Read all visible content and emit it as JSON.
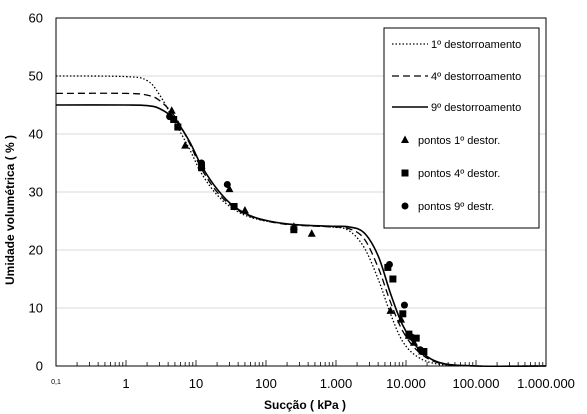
{
  "chart_data": {
    "type": "scatter",
    "xlabel": "Sucção ( kPa )",
    "ylabel": "Umidade volumétrica ( % )",
    "x_scale": "log",
    "xlim": [
      0.1,
      1000000
    ],
    "ylim": [
      0,
      60
    ],
    "x_ticks": [
      0.1,
      1,
      10,
      100,
      1000,
      10000,
      100000,
      1000000
    ],
    "x_tick_labels": [
      "0,1",
      "1",
      "10",
      "100",
      "1.000",
      "10.000",
      "100.000",
      "1.000.000"
    ],
    "y_ticks": [
      0,
      10,
      20,
      30,
      40,
      50,
      60
    ],
    "y_tick_labels": [
      "0",
      "10",
      "20",
      "30",
      "40",
      "50",
      "60"
    ],
    "grid": "horizontal",
    "legend_position": "top-right",
    "curves": [
      {
        "name": "1º destorroamento",
        "style": "dotted",
        "points": [
          [
            0.1,
            50.0
          ],
          [
            1,
            49.9
          ],
          [
            2,
            49.2
          ],
          [
            3,
            46.8
          ],
          [
            5,
            42.0
          ],
          [
            8,
            37.5
          ],
          [
            12,
            33.2
          ],
          [
            20,
            29.5
          ],
          [
            35,
            27.0
          ],
          [
            70,
            25.4
          ],
          [
            200,
            24.5
          ],
          [
            800,
            24.0
          ],
          [
            1500,
            23.4
          ],
          [
            2500,
            20.5
          ],
          [
            4000,
            15.0
          ],
          [
            6000,
            9.0
          ],
          [
            9000,
            4.2
          ],
          [
            15000,
            1.5
          ],
          [
            30000,
            0.3
          ],
          [
            100000,
            0
          ],
          [
            1000000,
            0
          ]
        ]
      },
      {
        "name": "4º destorroamento",
        "style": "dashed",
        "points": [
          [
            0.1,
            47.0
          ],
          [
            1,
            47.0
          ],
          [
            2,
            46.7
          ],
          [
            3,
            45.8
          ],
          [
            5,
            43.0
          ],
          [
            8,
            38.5
          ],
          [
            12,
            34.0
          ],
          [
            20,
            30.0
          ],
          [
            35,
            27.3
          ],
          [
            70,
            25.5
          ],
          [
            200,
            24.4
          ],
          [
            800,
            24.0
          ],
          [
            1500,
            23.7
          ],
          [
            2500,
            22.0
          ],
          [
            4000,
            17.0
          ],
          [
            6000,
            11.0
          ],
          [
            9000,
            6.0
          ],
          [
            15000,
            2.5
          ],
          [
            30000,
            0.5
          ],
          [
            100000,
            0
          ],
          [
            1000000,
            0
          ]
        ]
      },
      {
        "name": "9º destorroamento",
        "style": "solid",
        "points": [
          [
            0.1,
            45.0
          ],
          [
            1,
            45.0
          ],
          [
            2,
            44.9
          ],
          [
            3,
            44.4
          ],
          [
            5,
            42.5
          ],
          [
            8,
            38.8
          ],
          [
            12,
            34.5
          ],
          [
            20,
            30.5
          ],
          [
            35,
            27.5
          ],
          [
            70,
            25.6
          ],
          [
            200,
            24.5
          ],
          [
            800,
            24.1
          ],
          [
            1500,
            24.0
          ],
          [
            2500,
            23.0
          ],
          [
            4000,
            19.0
          ],
          [
            6000,
            12.5
          ],
          [
            9000,
            7.0
          ],
          [
            15000,
            3.0
          ],
          [
            30000,
            0.6
          ],
          [
            100000,
            0
          ],
          [
            1000000,
            0
          ]
        ]
      }
    ],
    "series": [
      {
        "name": "pontos 1º destor.",
        "marker": "triangle",
        "points": [
          [
            4.5,
            44.0
          ],
          [
            7,
            38.0
          ],
          [
            12,
            34.5
          ],
          [
            30,
            30.5
          ],
          [
            50,
            26.8
          ],
          [
            250,
            24.0
          ],
          [
            450,
            22.8
          ],
          [
            6000,
            9.5
          ],
          [
            8500,
            8.0
          ],
          [
            11000,
            5.2
          ],
          [
            13000,
            4.0
          ],
          [
            17000,
            2.5
          ]
        ]
      },
      {
        "name": "pontos 4º destor.",
        "marker": "square",
        "points": [
          [
            4.8,
            42.5
          ],
          [
            5.5,
            41.2
          ],
          [
            12,
            34.2
          ],
          [
            35,
            27.5
          ],
          [
            250,
            23.5
          ],
          [
            5500,
            17.0
          ],
          [
            6500,
            15.0
          ],
          [
            9000,
            9.0
          ],
          [
            11000,
            5.5
          ],
          [
            14000,
            4.8
          ],
          [
            18000,
            2.5
          ]
        ]
      },
      {
        "name": "pontos 9º destr.",
        "marker": "circle",
        "points": [
          [
            4.2,
            43.0
          ],
          [
            12,
            35.0
          ],
          [
            28,
            31.3
          ],
          [
            5800,
            17.5
          ],
          [
            9500,
            10.5
          ],
          [
            12000,
            5.0
          ],
          [
            16000,
            2.8
          ]
        ]
      }
    ]
  }
}
